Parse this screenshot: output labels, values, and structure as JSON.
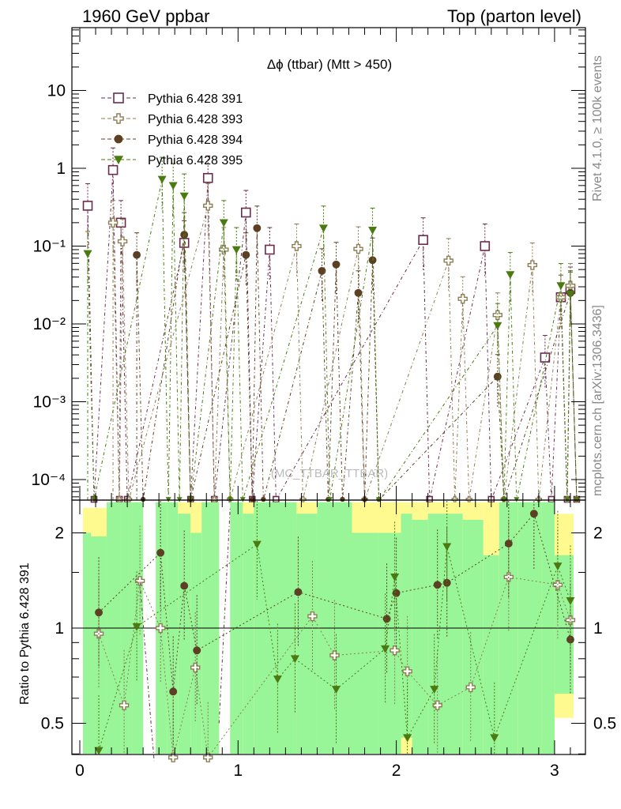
{
  "header": {
    "energy": "1960 GeV ppbar",
    "process": "Top (parton level)"
  },
  "side": {
    "rivet": "Rivet 4.1.0, ≥ 100k events",
    "mcplots": "mcplots.cern.ch [arXiv:1306.3436]"
  },
  "chart_data": [
    {
      "type": "scatter",
      "title": "Δϕ (ttbar) (Mtt > 450)",
      "watermark": "(MC_TTBAR_TTBAR)",
      "xlabel": "",
      "ylabel": "",
      "yscale": "log",
      "xlim": [
        -0.05,
        3.2
      ],
      "ylim": [
        5e-05,
        70
      ],
      "xticks": [
        "0",
        "1",
        "2",
        "3"
      ],
      "yticks": [
        "10",
        "1",
        "10⁻¹",
        "10⁻²",
        "10⁻³",
        "10⁻⁴"
      ],
      "x": [
        0.052,
        0.209,
        0.262,
        0.366,
        0.524,
        0.681,
        0.838,
        1.047,
        1.152,
        1.204,
        1.361,
        1.518,
        1.571,
        1.728,
        1.832,
        2.147,
        2.304,
        2.513,
        2.618,
        2.723,
        2.88,
        2.932,
        3.037,
        3.089,
        3.12
      ],
      "series": [
        {
          "name": "Pythia 6.428 391",
          "color": "#6b2c4c",
          "marker": "open-square",
          "points": [
            [
              0.05,
              0.33
            ],
            [
              0.21,
              0.95
            ],
            [
              0.26,
              0.2
            ],
            [
              0.66,
              0.11
            ],
            [
              0.81,
              0.75
            ],
            [
              1.05,
              0.27
            ],
            [
              1.2,
              0.09
            ],
            [
              2.17,
              0.12
            ],
            [
              2.56,
              0.1
            ],
            [
              2.94,
              0.0037
            ],
            [
              3.04,
              0.022
            ],
            [
              3.1,
              0.028
            ]
          ]
        },
        {
          "name": "Pythia 6.428 393",
          "color": "#8c7d55",
          "marker": "open-cross",
          "points": [
            [
              0.21,
              0.2
            ],
            [
              0.27,
              0.115
            ],
            [
              0.81,
              0.33
            ],
            [
              0.91,
              0.09
            ],
            [
              1.37,
              0.1
            ],
            [
              1.76,
              0.092
            ],
            [
              2.33,
              0.065
            ],
            [
              2.42,
              0.021
            ],
            [
              2.64,
              0.013
            ],
            [
              2.86,
              0.057
            ],
            [
              3.04,
              0.022
            ],
            [
              3.1,
              0.031
            ]
          ]
        },
        {
          "name": "Pythia 6.428 394",
          "color": "#5c4024",
          "marker": "filled-circle",
          "points": [
            [
              0.36,
              0.077
            ],
            [
              0.66,
              0.14
            ],
            [
              1.05,
              0.077
            ],
            [
              1.12,
              0.17
            ],
            [
              1.53,
              0.048
            ],
            [
              1.62,
              0.058
            ],
            [
              1.76,
              0.025
            ],
            [
              1.85,
              0.066
            ],
            [
              2.64,
              0.0021
            ],
            [
              3.1,
              0.025
            ]
          ]
        },
        {
          "name": "Pythia 6.428 395",
          "color": "#4a7a10",
          "marker": "filled-triangle-down",
          "points": [
            [
              0.05,
              0.08
            ],
            [
              0.52,
              0.72
            ],
            [
              0.59,
              0.6
            ],
            [
              0.66,
              0.44
            ],
            [
              0.91,
              0.2
            ],
            [
              0.99,
              0.09
            ],
            [
              1.54,
              0.17
            ],
            [
              1.85,
              0.16
            ],
            [
              2.64,
              0.0095
            ],
            [
              2.72,
              0.043
            ],
            [
              3.04,
              0.031
            ],
            [
              3.1,
              0.024
            ]
          ]
        }
      ]
    },
    {
      "type": "scatter",
      "title": "",
      "xlabel": "",
      "ylabel": "Ratio to Pythia 6.428 391",
      "yscale": "log",
      "xlim": [
        -0.05,
        3.2
      ],
      "ylim": [
        0.35,
        2.5
      ],
      "xticks": [
        "0",
        "1",
        "2",
        "3"
      ],
      "yticks": [
        "2",
        "1",
        "0.5"
      ],
      "yticks_right": [
        "2",
        "1",
        "0.5"
      ],
      "reference": 1,
      "series": [
        {
          "name": "Pythia 6.428 393",
          "color": "#8c7d55",
          "marker": "open-cross",
          "points": [
            [
              0.12,
              0.96
            ],
            [
              0.28,
              0.57
            ],
            [
              0.38,
              1.41
            ],
            [
              0.51,
              1.0
            ],
            [
              0.59,
              0.39
            ],
            [
              0.73,
              0.75
            ],
            [
              0.81,
              0.39
            ],
            [
              1.47,
              1.09
            ],
            [
              1.61,
              0.82
            ],
            [
              1.99,
              0.85
            ],
            [
              2.07,
              0.73
            ],
            [
              2.26,
              0.57
            ],
            [
              2.47,
              0.65
            ],
            [
              2.71,
              1.45
            ],
            [
              3.02,
              1.37
            ],
            [
              3.1,
              1.06
            ]
          ]
        },
        {
          "name": "Pythia 6.428 394",
          "color": "#5c4024",
          "marker": "filled-circle",
          "points": [
            [
              0.12,
              1.12
            ],
            [
              0.51,
              1.73
            ],
            [
              0.59,
              0.63
            ],
            [
              0.66,
              1.36
            ],
            [
              0.74,
              0.85
            ],
            [
              1.38,
              1.3
            ],
            [
              1.94,
              1.07
            ],
            [
              2.0,
              1.29
            ],
            [
              2.26,
              1.37
            ],
            [
              2.32,
              1.39
            ],
            [
              2.71,
              1.85
            ],
            [
              2.87,
              2.3
            ],
            [
              3.1,
              0.92
            ]
          ]
        },
        {
          "name": "Pythia 6.428 395",
          "color": "#4a7a10",
          "marker": "filled-triangle-down",
          "points": [
            [
              0.12,
              0.41
            ],
            [
              0.36,
              1.01
            ],
            [
              1.12,
              1.84
            ],
            [
              1.25,
              0.69
            ],
            [
              1.36,
              0.8
            ],
            [
              1.62,
              0.64
            ],
            [
              1.93,
              0.86
            ],
            [
              1.99,
              1.45
            ],
            [
              2.07,
              0.45
            ],
            [
              2.24,
              0.64
            ],
            [
              2.32,
              1.81
            ],
            [
              2.62,
              0.45
            ],
            [
              3.02,
              1.57
            ],
            [
              3.1,
              1.22
            ]
          ]
        }
      ]
    }
  ]
}
